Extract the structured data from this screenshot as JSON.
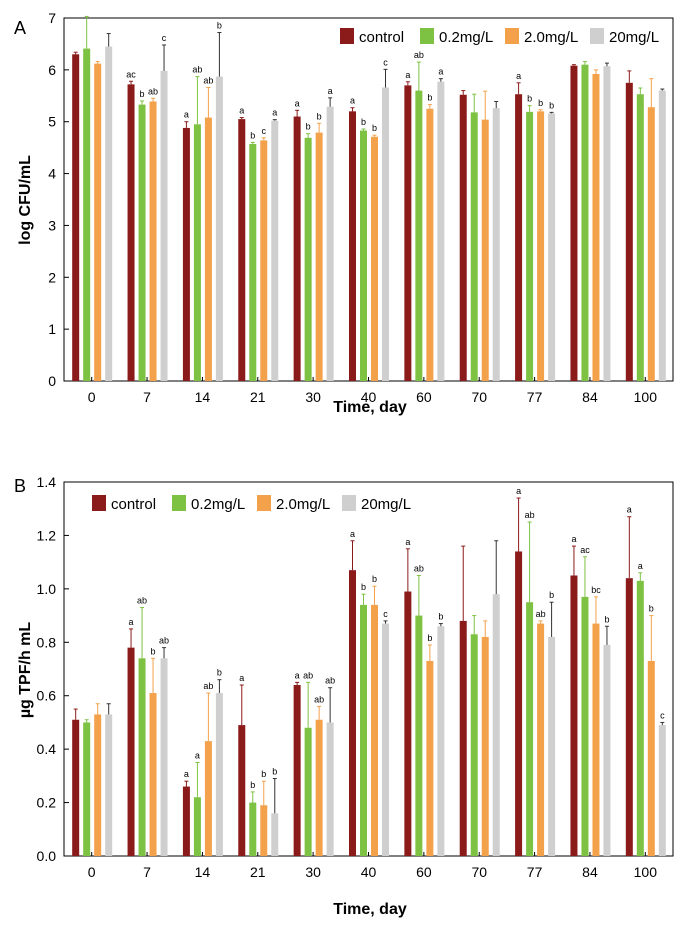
{
  "colors": {
    "control": "#8B1A1A",
    "c02": "#7DC242",
    "c20": "#F4A14B",
    "c200": "#CFCFCF"
  },
  "chart_data": [
    {
      "type": "bar",
      "panel_label": "A",
      "title": "",
      "xlabel": "Time, day",
      "ylabel": "log CFU/mL",
      "ylim": [
        0,
        7
      ],
      "yticks": [
        "0",
        "1",
        "2",
        "3",
        "4",
        "5",
        "6",
        "7"
      ],
      "categories": [
        "0",
        "7",
        "14",
        "21",
        "30",
        "40",
        "60",
        "70",
        "77",
        "84",
        "100"
      ],
      "legend": "top-right",
      "series": [
        {
          "name": "control",
          "color_key": "control",
          "values": [
            6.3,
            5.72,
            4.88,
            5.05,
            5.1,
            5.2,
            5.7,
            5.52,
            5.53,
            6.08,
            5.75
          ],
          "errors": [
            0.04,
            0.06,
            0.12,
            0.03,
            0.12,
            0.07,
            0.07,
            0.08,
            0.22,
            0.02,
            0.23
          ],
          "letters": [
            "",
            "ac",
            "a",
            "a",
            "a",
            "a",
            "a",
            "",
            "a",
            "",
            ""
          ]
        },
        {
          "name": "0.2mg/L",
          "color_key": "c02",
          "values": [
            6.41,
            5.33,
            4.95,
            4.57,
            4.69,
            4.83,
            5.6,
            5.18,
            5.19,
            6.1,
            5.53
          ],
          "errors": [
            0.62,
            0.07,
            0.92,
            0.03,
            0.08,
            0.03,
            0.55,
            0.35,
            0.12,
            0.06,
            0.12
          ],
          "letters": [
            "",
            "b",
            "ab",
            "b",
            "b",
            "b",
            "ab",
            "",
            "b",
            "",
            ""
          ]
        },
        {
          "name": "2.0mg/L",
          "color_key": "c20",
          "values": [
            6.12,
            5.39,
            5.08,
            4.64,
            4.79,
            4.71,
            5.25,
            5.04,
            5.2,
            5.92,
            5.28
          ],
          "errors": [
            0.04,
            0.06,
            0.58,
            0.05,
            0.18,
            0.03,
            0.08,
            0.55,
            0.03,
            0.08,
            0.55
          ],
          "letters": [
            "",
            "ab",
            "ab",
            "c",
            "b",
            "b",
            "b",
            "",
            "b",
            "",
            ""
          ]
        },
        {
          "name": "20mg/L",
          "color_key": "c200",
          "values": [
            6.45,
            5.98,
            5.87,
            5.02,
            5.29,
            5.66,
            5.77,
            5.26,
            5.16,
            6.07,
            5.6
          ],
          "errors": [
            0.25,
            0.5,
            0.85,
            0.02,
            0.17,
            0.35,
            0.06,
            0.13,
            0.02,
            0.06,
            0.03
          ],
          "letters": [
            "",
            "c",
            "b",
            "a",
            "a",
            "c",
            "a",
            "",
            "b",
            "",
            ""
          ]
        }
      ]
    },
    {
      "type": "bar",
      "panel_label": "B",
      "title": "",
      "xlabel": "Time, day",
      "ylabel": "µg TPF/h mL",
      "ylim": [
        0,
        1.4
      ],
      "yticks": [
        "0.0",
        "0.2",
        "0.4",
        "0.6",
        "0.8",
        "1.0",
        "1.2",
        "1.4"
      ],
      "categories": [
        "0",
        "7",
        "14",
        "21",
        "30",
        "40",
        "60",
        "70",
        "77",
        "84",
        "100"
      ],
      "legend": "top-left",
      "series": [
        {
          "name": "control",
          "color_key": "control",
          "values": [
            0.51,
            0.78,
            0.26,
            0.49,
            0.64,
            1.07,
            0.99,
            0.88,
            1.14,
            1.05,
            1.04
          ],
          "errors": [
            0.04,
            0.07,
            0.02,
            0.15,
            0.01,
            0.11,
            0.16,
            0.28,
            0.2,
            0.11,
            0.23
          ],
          "letters": [
            "",
            "a",
            "a",
            "a",
            "a",
            "a",
            "a",
            "",
            "a",
            "a",
            "a"
          ]
        },
        {
          "name": "0.2mg/L",
          "color_key": "c02",
          "values": [
            0.5,
            0.74,
            0.22,
            0.2,
            0.48,
            0.94,
            0.9,
            0.83,
            0.95,
            0.97,
            1.03
          ],
          "errors": [
            0.01,
            0.19,
            0.13,
            0.04,
            0.17,
            0.04,
            0.15,
            0.07,
            0.3,
            0.15,
            0.03
          ],
          "letters": [
            "",
            "ab",
            "a",
            "b",
            "ab",
            "b",
            "ab",
            "",
            "ab",
            "ac",
            "a"
          ]
        },
        {
          "name": "2.0mg/L",
          "color_key": "c20",
          "values": [
            0.53,
            0.61,
            0.43,
            0.19,
            0.51,
            0.94,
            0.73,
            0.82,
            0.87,
            0.87,
            0.73
          ],
          "errors": [
            0.04,
            0.13,
            0.18,
            0.09,
            0.05,
            0.07,
            0.06,
            0.06,
            0.01,
            0.1,
            0.17
          ],
          "letters": [
            "",
            "b",
            "ab",
            "b",
            "ab",
            "b",
            "b",
            "",
            "ab",
            "bc",
            "b"
          ]
        },
        {
          "name": "20mg/L",
          "color_key": "c200",
          "values": [
            0.53,
            0.74,
            0.61,
            0.16,
            0.5,
            0.87,
            0.86,
            0.98,
            0.82,
            0.79,
            0.49
          ],
          "errors": [
            0.04,
            0.04,
            0.05,
            0.13,
            0.13,
            0.01,
            0.01,
            0.2,
            0.13,
            0.07,
            0.01
          ],
          "letters": [
            "",
            "ab",
            "b",
            "b",
            "ab",
            "c",
            "b",
            "",
            "b",
            "b",
            "c"
          ]
        }
      ]
    }
  ]
}
